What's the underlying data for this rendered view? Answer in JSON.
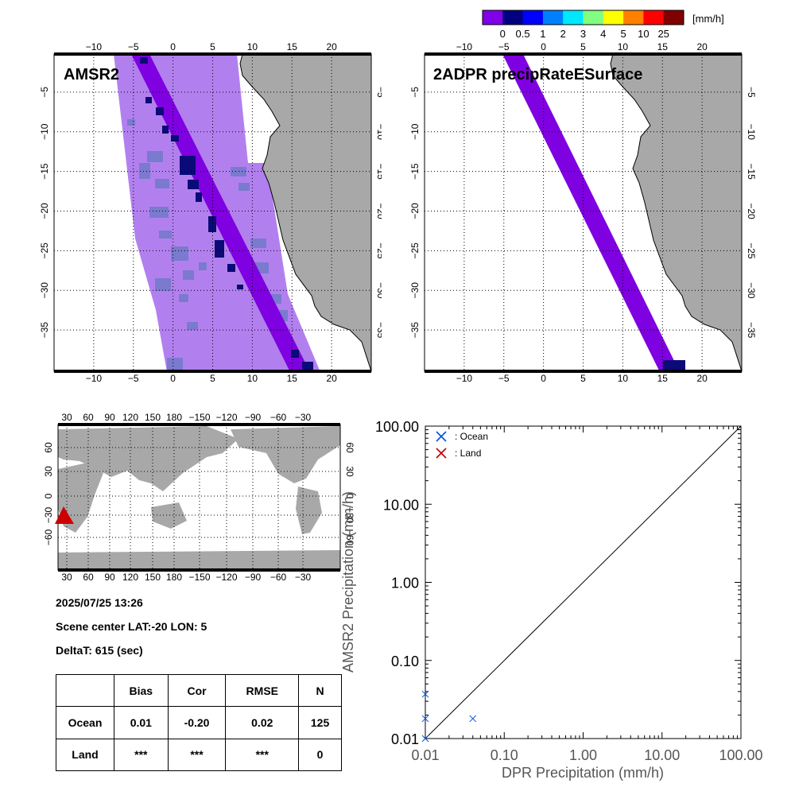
{
  "colorbar": {
    "unit": "[mm/h]",
    "labels": [
      "0",
      "0.5",
      "1",
      "2",
      "3",
      "4",
      "5",
      "10",
      "25"
    ],
    "colors": [
      "#8000e8",
      "#000080",
      "#0000ff",
      "#0080ff",
      "#00e8ff",
      "#80ff80",
      "#ffff00",
      "#ff8000",
      "#ff0000",
      "#800000"
    ]
  },
  "colors": {
    "land": "#a8a8a8",
    "swath_light": "#b280ee",
    "swath_core": "#7f00e0",
    "rain_light": "#7a7ace",
    "rain_heavy": "#0a0a78",
    "ocean_marker": "#0050e0",
    "land_marker": "#c00000",
    "scene_marker": "#cc0000"
  },
  "map_amsr2": {
    "title": "AMSR2",
    "lon_ticks": [
      "−10",
      "−5",
      "0",
      "5",
      "10",
      "15",
      "20"
    ],
    "lat_ticks": [
      "−5",
      "−10",
      "−15",
      "−20",
      "−25",
      "−30",
      "−35"
    ]
  },
  "map_dpr": {
    "title": "2ADPR precipRateESurface",
    "lon_ticks": [
      "−10",
      "−5",
      "0",
      "5",
      "10",
      "15",
      "20"
    ],
    "lat_ticks": [
      "−5",
      "−10",
      "−15",
      "−20",
      "−25",
      "−30",
      "−35"
    ]
  },
  "world_map": {
    "lon_ticks": [
      "30",
      "60",
      "90",
      "120",
      "150",
      "180",
      "−150",
      "−120",
      "−90",
      "−60",
      "−30"
    ],
    "lat_ticks": [
      "60",
      "30",
      "0",
      "−30",
      "−60"
    ]
  },
  "info": {
    "datetime": "2025/07/25 13:26",
    "scene_center": "Scene center LAT:-20   LON:   5",
    "deltat": "DeltaT:  615 (sec)"
  },
  "stats_table": {
    "headers": [
      "",
      "Bias",
      "Cor",
      "RMSE",
      "N"
    ],
    "rows": [
      [
        "Ocean",
        "0.01",
        "-0.20",
        "0.02",
        "125"
      ],
      [
        "Land",
        "***",
        "***",
        "***",
        "0"
      ]
    ]
  },
  "chart_data": {
    "type": "scatter",
    "xlabel": "DPR Precipitation (mm/h)",
    "ylabel": "AMSR2 Precipitation (mm/h)",
    "xscale": "log",
    "yscale": "log",
    "xlim": [
      0.01,
      100
    ],
    "ylim": [
      0.01,
      100
    ],
    "ticks": [
      "0.01",
      "0.10",
      "1.00",
      "10.00",
      "100.00"
    ],
    "legend": [
      "Ocean",
      "Land"
    ],
    "legend_position": "top-left",
    "series": [
      {
        "name": "Ocean",
        "x": [
          0.01,
          0.01,
          0.04,
          0.01
        ],
        "y": [
          0.037,
          0.018,
          0.018,
          0.01
        ]
      },
      {
        "name": "Land",
        "x": [],
        "y": []
      }
    ]
  }
}
